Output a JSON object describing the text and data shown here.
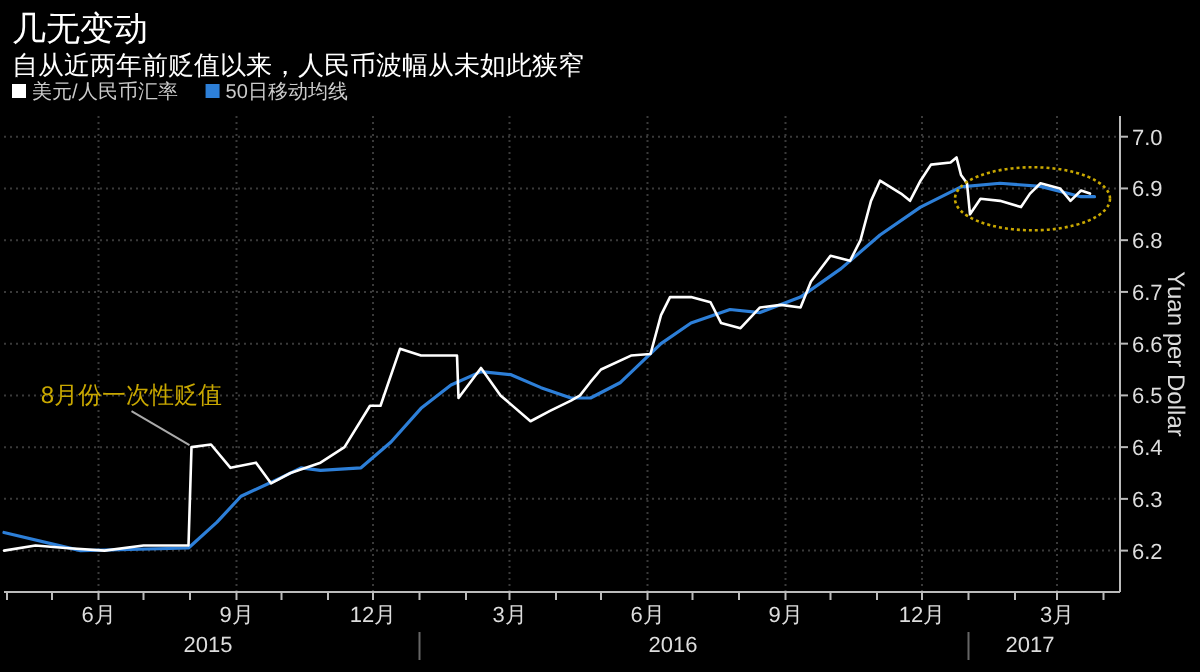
{
  "chart_data": {
    "type": "line",
    "title": "几无变动",
    "subtitle": "自从近两年前贬值以来，人民币波幅从未如此狭窄",
    "ylabel": "Yuan per Dollar",
    "xlim": [
      "2015-03-30",
      "2017-04-12"
    ],
    "ylim": [
      6.12,
      7.04
    ],
    "yticks": [
      6.2,
      6.3,
      6.4,
      6.5,
      6.6,
      6.7,
      6.8,
      6.9,
      {
        "value": 7,
        "label": "7.0"
      }
    ],
    "xticks": [
      {
        "value": "2015-04-01",
        "label": null
      },
      {
        "value": "2015-05-01",
        "label": null
      },
      {
        "value": "2015-06-01",
        "label": "6月"
      },
      {
        "value": "2015-07-01",
        "label": null
      },
      {
        "value": "2015-08-01",
        "label": null
      },
      {
        "value": "2015-09-01",
        "label": "9月"
      },
      {
        "value": "2015-10-01",
        "label": null
      },
      {
        "value": "2015-11-01",
        "label": null
      },
      {
        "value": "2015-12-01",
        "label": "12月"
      },
      {
        "value": "2016-01-01",
        "label": null
      },
      {
        "value": "2016-02-01",
        "label": null
      },
      {
        "value": "2016-03-01",
        "label": "3月"
      },
      {
        "value": "2016-04-01",
        "label": null
      },
      {
        "value": "2016-05-01",
        "label": null
      },
      {
        "value": "2016-06-01",
        "label": "6月"
      },
      {
        "value": "2016-07-01",
        "label": null
      },
      {
        "value": "2016-08-01",
        "label": null
      },
      {
        "value": "2016-09-01",
        "label": "9月"
      },
      {
        "value": "2016-10-01",
        "label": null
      },
      {
        "value": "2016-11-01",
        "label": null
      },
      {
        "value": "2016-12-01",
        "label": "12月"
      },
      {
        "value": "2017-01-01",
        "label": null
      },
      {
        "value": "2017-02-01",
        "label": null
      },
      {
        "value": "2017-03-01",
        "label": "3月"
      },
      {
        "value": "2017-04-01",
        "label": null
      }
    ],
    "x2lim": [
      "2015-03-30",
      "2017-04-12"
    ],
    "x2ticks": [
      {
        "value": "2015-08-13",
        "label": "2015"
      },
      {
        "value": "2016-06-18",
        "label": "2016"
      },
      {
        "value": "2017-02-11",
        "label": "2017"
      }
    ],
    "grid": true,
    "legend": "top left",
    "marker": "none",
    "line_style": "solid",
    "annotations": [
      {
        "text": "8月份一次性贬值",
        "x": "2015-08-02",
        "y": 6.4
      }
    ],
    "series": [
      {
        "name": "美元/人民币汇率",
        "color": "#ffffff",
        "x": [
          "2015-03-30",
          "2015-04-20",
          "2015-05-10",
          "2015-06-05",
          "2015-07-01",
          "2015-07-31",
          "2015-08-02",
          "2015-08-15",
          "2015-08-28",
          "2015-09-14",
          "2015-09-24",
          "2015-10-07",
          "2015-10-27",
          "2015-11-12",
          "2015-11-29",
          "2015-12-06",
          "2015-12-19",
          "2016-01-02",
          "2016-01-26",
          "2016-01-27",
          "2016-02-11",
          "2016-02-24",
          "2016-03-15",
          "2016-03-28",
          "2016-04-11",
          "2016-04-17",
          "2016-04-24",
          "2016-05-01",
          "2016-05-21",
          "2016-06-03",
          "2016-06-10",
          "2016-06-16",
          "2016-06-30",
          "2016-07-13",
          "2016-07-20",
          "2016-08-02",
          "2016-08-15",
          "2016-08-29",
          "2016-09-11",
          "2016-09-18",
          "2016-10-01",
          "2016-10-14",
          "2016-10-21",
          "2016-10-28",
          "2016-11-03",
          "2016-11-17",
          "2016-11-23",
          "2016-11-30",
          "2016-12-07",
          "2016-12-20",
          "2016-12-24",
          "2016-12-27",
          "2016-12-31",
          "2017-01-02",
          "2017-01-09",
          "2017-01-22",
          "2017-02-05",
          "2017-02-11",
          "2017-02-18",
          "2017-03-03",
          "2017-03-10",
          "2017-03-17",
          "2017-03-23"
        ],
        "values": [
          6.2,
          6.21,
          6.205,
          6.2,
          6.21,
          6.21,
          6.4,
          6.405,
          6.36,
          6.37,
          6.33,
          6.35,
          6.37,
          6.4,
          6.48,
          6.48,
          6.59,
          6.577,
          6.577,
          6.495,
          6.553,
          6.5,
          6.45,
          6.47,
          6.49,
          6.5,
          6.526,
          6.55,
          6.577,
          6.58,
          6.655,
          6.69,
          6.69,
          6.68,
          6.64,
          6.63,
          6.67,
          6.675,
          6.67,
          6.72,
          6.77,
          6.76,
          6.8,
          6.876,
          6.915,
          6.89,
          6.876,
          6.915,
          6.946,
          6.95,
          6.96,
          6.926,
          6.91,
          6.85,
          6.88,
          6.876,
          6.864,
          6.89,
          6.91,
          6.9,
          6.876,
          6.896,
          6.89
        ]
      },
      {
        "name": "50日移动均线",
        "color": "#2d7fd8",
        "x": [
          "2015-03-30",
          "2015-05-20",
          "2015-07-31",
          "2015-08-19",
          "2015-09-04",
          "2015-09-30",
          "2015-10-14",
          "2015-10-27",
          "2015-11-23",
          "2015-12-13",
          "2016-01-02",
          "2016-01-22",
          "2016-02-11",
          "2016-03-02",
          "2016-03-22",
          "2016-04-11",
          "2016-04-24",
          "2016-05-14",
          "2016-06-10",
          "2016-06-30",
          "2016-07-26",
          "2016-08-15",
          "2016-09-11",
          "2016-10-08",
          "2016-11-03",
          "2016-11-30",
          "2016-12-27",
          "2017-01-22",
          "2017-02-18",
          "2017-03-17",
          "2017-03-26"
        ],
        "values": [
          6.235,
          6.2,
          6.205,
          6.255,
          6.305,
          6.34,
          6.36,
          6.355,
          6.36,
          6.41,
          6.475,
          6.52,
          6.546,
          6.54,
          6.515,
          6.495,
          6.495,
          6.525,
          6.6,
          6.64,
          6.666,
          6.66,
          6.69,
          6.745,
          6.81,
          6.864,
          6.903,
          6.91,
          6.904,
          6.884,
          6.884
        ]
      }
    ]
  }
}
